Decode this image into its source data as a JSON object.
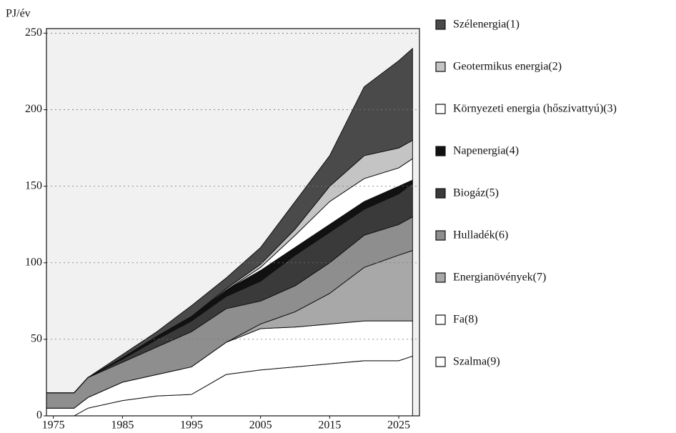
{
  "chart_data": {
    "type": "stacked-area",
    "y_label": "PJ/év",
    "x": [
      1974,
      1978,
      1980,
      1985,
      1990,
      1995,
      2000,
      2005,
      2010,
      2015,
      2020,
      2025,
      2027
    ],
    "xlim": [
      1974,
      2028
    ],
    "xticks": [
      1975,
      1985,
      1995,
      2005,
      2015,
      2025
    ],
    "ylim": [
      0,
      253
    ],
    "yticks": [
      0,
      50,
      100,
      150,
      200,
      250
    ],
    "grid": true,
    "series": [
      {
        "name": "Szalma(9)",
        "color": "#ffffff",
        "values": [
          0,
          0,
          5,
          10,
          13,
          14,
          27,
          30,
          32,
          34,
          36,
          36,
          39
        ]
      },
      {
        "name": "Fa(8)",
        "color": "#ffffff",
        "values": [
          5,
          5,
          7,
          12,
          14,
          18,
          21,
          27,
          26,
          26,
          26,
          26,
          23
        ]
      },
      {
        "name": "Energianövények(7)",
        "color": "#a8a8a8",
        "values": [
          0,
          0,
          0,
          0,
          0,
          0,
          0,
          3,
          10,
          20,
          35,
          43,
          46
        ]
      },
      {
        "name": "Hulladék(6)",
        "color": "#8e8e8e",
        "values": [
          10,
          10,
          13,
          13,
          18,
          23,
          22,
          15,
          17,
          20,
          21,
          20,
          22
        ]
      },
      {
        "name": "Biogáz(5)",
        "color": "#3a3a3a",
        "values": [
          0,
          0,
          0,
          2,
          5,
          7,
          8,
          13,
          20,
          20,
          17,
          20,
          22
        ]
      },
      {
        "name": "Napenergia(4)",
        "color": "#111111",
        "values": [
          0,
          0,
          0,
          1,
          2,
          3,
          4,
          7,
          5,
          5,
          5,
          5,
          2
        ]
      },
      {
        "name": "Környezeti energia (hőszivattyú)(3)",
        "color": "#ffffff",
        "values": [
          0,
          0,
          0,
          0,
          0,
          0,
          0,
          2,
          8,
          15,
          15,
          12,
          14
        ]
      },
      {
        "name": "Geotermikus energia(2)",
        "color": "#c4c4c4",
        "values": [
          0,
          0,
          0,
          0,
          0,
          0,
          1,
          2,
          4,
          10,
          15,
          13,
          12
        ]
      },
      {
        "name": "Szélenergia(1)",
        "color": "#4a4a4a",
        "values": [
          0,
          0,
          0,
          2,
          3,
          7,
          7,
          11,
          18,
          20,
          45,
          57,
          60
        ]
      }
    ]
  }
}
